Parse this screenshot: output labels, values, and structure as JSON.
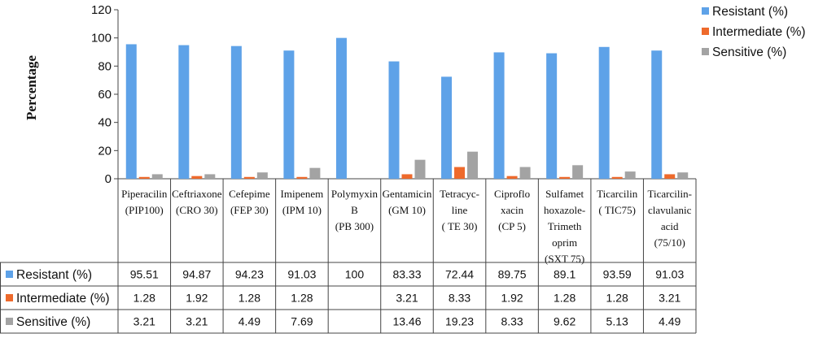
{
  "chart_data": {
    "type": "bar",
    "ylabel": "Percentage",
    "xlabel": "",
    "ylim": [
      0,
      120
    ],
    "yticks": [
      0,
      20,
      40,
      60,
      80,
      100,
      120
    ],
    "grid": false,
    "legend_position": "top-right",
    "categories": [
      [
        "Piperacilin",
        "(PIP100)"
      ],
      [
        "Ceftriaxone",
        "(CRO 30)"
      ],
      [
        "Cefepime",
        "(FEP 30)"
      ],
      [
        "Imipenem",
        "(IPM 10)"
      ],
      [
        "Polymyxin",
        "B",
        "(PB 300)"
      ],
      [
        "Gentamicin",
        "(GM 10)"
      ],
      [
        "Tetracyc-",
        "line",
        "( TE 30)"
      ],
      [
        "Ciproflo",
        "xacin",
        "(CP 5)"
      ],
      [
        "Sulfamet",
        "hoxazole-",
        "Trimeth",
        "oprim",
        "(SXT 75)"
      ],
      [
        "Ticarcilin",
        "( TIC75)"
      ],
      [
        "Ticarcilin-",
        "clavulanic",
        "acid",
        "(75/10)"
      ]
    ],
    "series": [
      {
        "name": "Resistant (%)",
        "color": "#5ea2e8",
        "values": [
          95.51,
          94.87,
          94.23,
          91.03,
          100,
          83.33,
          72.44,
          89.75,
          89.1,
          93.59,
          91.03
        ],
        "labels": [
          "95.51",
          "94.87",
          "94.23",
          "91.03",
          "100",
          "83.33",
          "72.44",
          "89.75",
          "89.1",
          "93.59",
          "91.03"
        ]
      },
      {
        "name": "Intermediate (%)",
        "color": "#ee6a2c",
        "values": [
          1.28,
          1.92,
          1.28,
          1.28,
          null,
          3.21,
          8.33,
          1.92,
          1.28,
          1.28,
          3.21
        ],
        "labels": [
          "1.28",
          "1.92",
          "1.28",
          "1.28",
          "",
          "3.21",
          "8.33",
          "1.92",
          "1.28",
          "1.28",
          "3.21"
        ]
      },
      {
        "name": "Sensitive (%)",
        "color": "#a3a3a3",
        "values": [
          3.21,
          3.21,
          4.49,
          7.69,
          null,
          13.46,
          19.23,
          8.33,
          9.62,
          5.13,
          4.49
        ],
        "labels": [
          "3.21",
          "3.21",
          "4.49",
          "7.69",
          "",
          "13.46",
          "19.23",
          "8.33",
          "9.62",
          "5.13",
          "4.49"
        ]
      }
    ]
  }
}
